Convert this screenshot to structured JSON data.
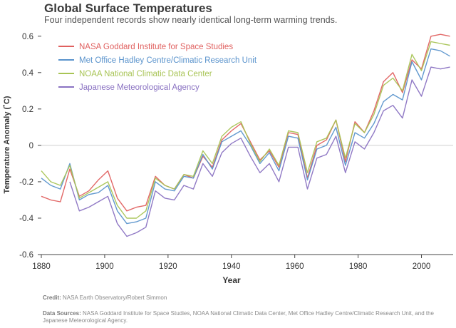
{
  "header": {
    "title": "Global Surface Temperatures",
    "subtitle": "Four independent records show nearly identical long-term warming trends."
  },
  "footer": {
    "credit_label": "Credit:",
    "credit_text": "NASA Earth Observatory/Robert Simmon",
    "sources_label": "Data Sources:",
    "sources_text": "NASA Goddard Institute for Space Studies, NOAA National Climatic Data Center, Met Office Hadley Centre/Climatic Research Unit, and the Japanese Meteorological Agency."
  },
  "chart_data": {
    "type": "line",
    "title": "Global Surface Temperatures",
    "subtitle": "Four independent records show nearly identical long-term warming trends.",
    "xlabel": "Year",
    "ylabel": "Temperature Anomaly (˚C)",
    "xlim": [
      1880,
      2010
    ],
    "ylim": [
      -0.6,
      0.65
    ],
    "xticks": [
      1880,
      1900,
      1920,
      1940,
      1960,
      1980,
      2000
    ],
    "yticks": [
      -0.6,
      -0.4,
      -0.2,
      0,
      0.2,
      0.4,
      0.6
    ],
    "grid": "horizontal",
    "legend_position": "top-left",
    "x": [
      1880,
      1883,
      1886,
      1889,
      1892,
      1895,
      1898,
      1901,
      1904,
      1907,
      1910,
      1913,
      1916,
      1919,
      1922,
      1925,
      1928,
      1931,
      1934,
      1937,
      1940,
      1943,
      1946,
      1949,
      1952,
      1955,
      1958,
      1961,
      1964,
      1967,
      1970,
      1973,
      1976,
      1979,
      1982,
      1985,
      1988,
      1991,
      1994,
      1997,
      2000,
      2003,
      2006,
      2009
    ],
    "series": [
      {
        "name": "NASA Goddard Institute for Space Studies",
        "color": "#e0605f",
        "values": [
          -0.28,
          -0.3,
          -0.31,
          -0.13,
          -0.28,
          -0.25,
          -0.19,
          -0.14,
          -0.29,
          -0.36,
          -0.34,
          -0.33,
          -0.17,
          -0.22,
          -0.24,
          -0.16,
          -0.18,
          -0.06,
          -0.12,
          0.03,
          0.08,
          0.12,
          0.02,
          -0.08,
          -0.03,
          -0.12,
          0.07,
          0.06,
          -0.18,
          0.0,
          0.03,
          0.14,
          -0.09,
          0.13,
          0.07,
          0.19,
          0.35,
          0.4,
          0.29,
          0.47,
          0.42,
          0.6,
          0.61,
          0.6
        ]
      },
      {
        "name": "Met Office Hadley Centre/Climatic Research Unit",
        "color": "#5a93cc",
        "values": [
          -0.18,
          -0.22,
          -0.24,
          -0.1,
          -0.3,
          -0.27,
          -0.26,
          -0.22,
          -0.36,
          -0.43,
          -0.42,
          -0.4,
          -0.2,
          -0.24,
          -0.25,
          -0.17,
          -0.18,
          -0.05,
          -0.13,
          0.02,
          0.05,
          0.08,
          0.0,
          -0.1,
          -0.04,
          -0.14,
          0.05,
          0.04,
          -0.19,
          -0.02,
          0.0,
          0.1,
          -0.11,
          0.07,
          0.04,
          0.12,
          0.24,
          0.28,
          0.25,
          0.46,
          0.36,
          0.53,
          0.52,
          0.49
        ]
      },
      {
        "name": "NOAA National Climatic Data Center",
        "color": "#a8c455",
        "values": [
          -0.14,
          -0.2,
          -0.22,
          -0.11,
          -0.29,
          -0.26,
          -0.23,
          -0.2,
          -0.33,
          -0.4,
          -0.4,
          -0.36,
          -0.18,
          -0.22,
          -0.24,
          -0.16,
          -0.17,
          -0.03,
          -0.1,
          0.05,
          0.1,
          0.13,
          0.01,
          -0.09,
          -0.02,
          -0.11,
          0.08,
          0.07,
          -0.15,
          0.02,
          0.04,
          0.14,
          -0.07,
          0.12,
          0.07,
          0.17,
          0.33,
          0.37,
          0.3,
          0.5,
          0.41,
          0.57,
          0.56,
          0.55
        ]
      },
      {
        "name": "Japanese Meteorological Agency",
        "color": "#8a72c2",
        "values": [
          null,
          null,
          null,
          -0.2,
          -0.36,
          -0.34,
          -0.31,
          -0.28,
          -0.43,
          -0.5,
          -0.48,
          -0.45,
          -0.25,
          -0.29,
          -0.3,
          -0.22,
          -0.24,
          -0.1,
          -0.17,
          -0.04,
          0.01,
          0.04,
          -0.06,
          -0.15,
          -0.1,
          -0.2,
          -0.01,
          -0.01,
          -0.24,
          -0.07,
          -0.05,
          0.05,
          -0.15,
          0.02,
          -0.02,
          0.07,
          0.19,
          0.22,
          0.15,
          0.36,
          0.27,
          0.43,
          0.42,
          0.43
        ]
      }
    ],
    "credit": "Credit: NASA Earth Observatory/Robert Simmon",
    "data_sources": "Data Sources: NASA Goddard Institute for Space Studies, NOAA National Climatic Data Center, Met Office Hadley Centre/Climatic Research Unit, and the Japanese Meteorological Agency."
  }
}
